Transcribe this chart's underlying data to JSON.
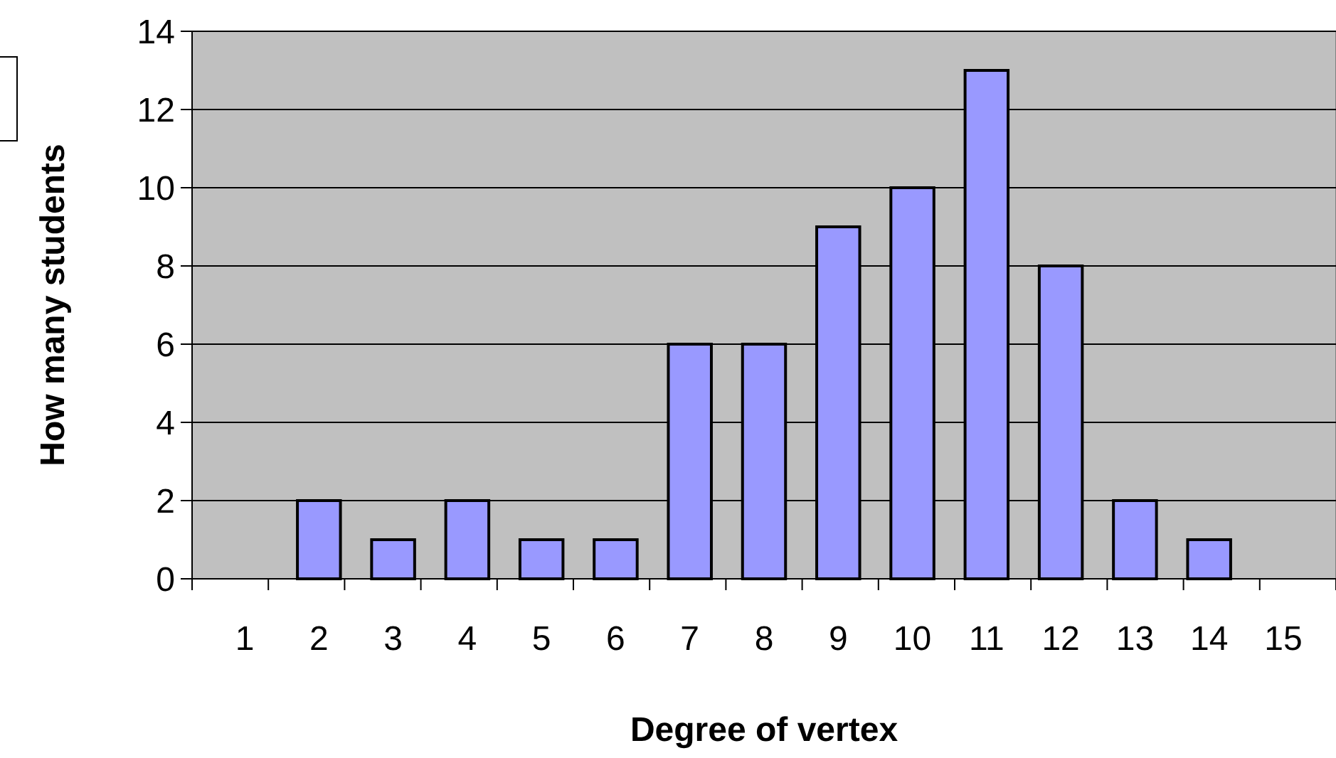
{
  "chart_data": {
    "type": "bar",
    "xlabel": "Degree of vertex",
    "ylabel": "How many students",
    "categories": [
      "1",
      "2",
      "3",
      "4",
      "5",
      "6",
      "7",
      "8",
      "9",
      "10",
      "11",
      "12",
      "13",
      "14",
      "15"
    ],
    "values": [
      0,
      2,
      1,
      2,
      1,
      1,
      6,
      6,
      9,
      10,
      13,
      8,
      2,
      1,
      0
    ],
    "color": "#9999ff",
    "ylim": [
      0,
      14
    ],
    "yticks": [
      0,
      2,
      4,
      6,
      8,
      10,
      12,
      14
    ],
    "grid": "y"
  }
}
